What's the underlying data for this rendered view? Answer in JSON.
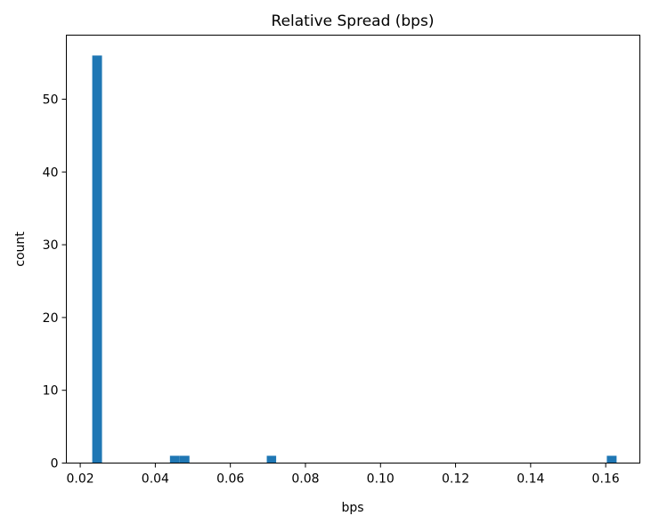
{
  "chart_data": {
    "type": "bar",
    "title": "Relative Spread (bps)",
    "xlabel": "bps",
    "ylabel": "count",
    "xlim": [
      0.0163,
      0.1691
    ],
    "ylim": [
      0,
      58.8
    ],
    "grid": false,
    "xticks": [
      0.02,
      0.04,
      0.06,
      0.08,
      0.1,
      0.12,
      0.14,
      0.16
    ],
    "xtick_labels": [
      "0.02",
      "0.04",
      "0.06",
      "0.08",
      "0.10",
      "0.12",
      "0.14",
      "0.16"
    ],
    "yticks": [
      0,
      10,
      20,
      30,
      40,
      50
    ],
    "ytick_labels": [
      "0",
      "10",
      "20",
      "30",
      "40",
      "50"
    ],
    "bar_color": "#1f77b4",
    "bins": [
      {
        "x0": 0.0232,
        "x1": 0.0258,
        "value": 56
      },
      {
        "x0": 0.0439,
        "x1": 0.0465,
        "value": 1
      },
      {
        "x0": 0.0465,
        "x1": 0.0491,
        "value": 1
      },
      {
        "x0": 0.0697,
        "x1": 0.0722,
        "value": 1
      },
      {
        "x0": 0.1603,
        "x1": 0.1629,
        "value": 1
      }
    ]
  }
}
